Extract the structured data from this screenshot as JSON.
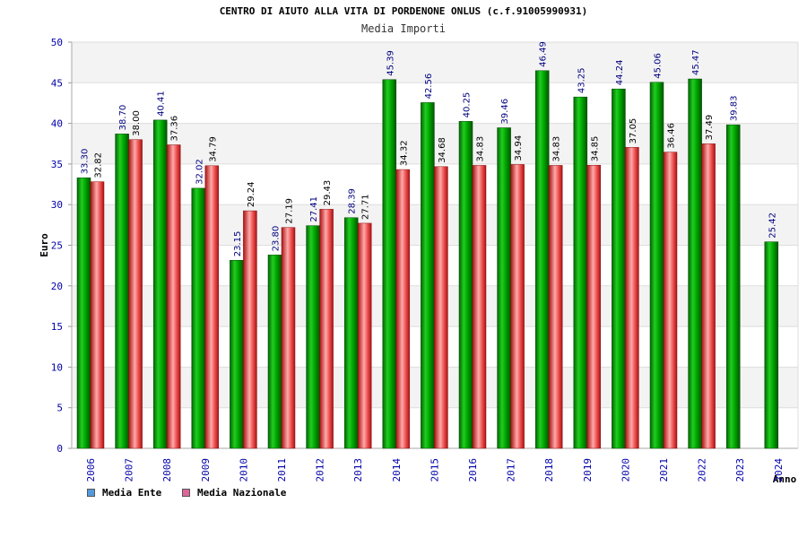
{
  "chart_data": {
    "type": "bar",
    "title": "CENTRO DI AIUTO ALLA VITA DI PORDENONE ONLUS (c.f.91005990931)",
    "subtitle": "Media Importi",
    "ylabel": "Euro",
    "xlabel": "Anno",
    "ylim": [
      0,
      50
    ],
    "yticks": [
      0,
      5,
      10,
      15,
      20,
      25,
      30,
      35,
      40,
      45,
      50
    ],
    "categories": [
      "2006",
      "2007",
      "2008",
      "2009",
      "2010",
      "2011",
      "2012",
      "2013",
      "2014",
      "2015",
      "2016",
      "2017",
      "2018",
      "2019",
      "2020",
      "2021",
      "2022",
      "2023",
      "2024"
    ],
    "series": [
      {
        "name": "Media Ente",
        "color": "#00aa00",
        "values": [
          33.3,
          38.7,
          40.41,
          32.02,
          23.15,
          23.8,
          27.41,
          28.39,
          45.39,
          42.56,
          40.25,
          39.46,
          46.49,
          43.25,
          44.24,
          45.06,
          45.47,
          39.83,
          25.42
        ],
        "labels": [
          "33.30",
          "38.70",
          "40.41",
          "32.02",
          "23.15",
          "23.80",
          "27.41",
          "28.39",
          "45.39",
          "42.56",
          "40.25",
          "39.46",
          "46.49",
          "43.25",
          "44.24",
          "45.06",
          "45.47",
          "39.83",
          "25.42"
        ]
      },
      {
        "name": "Media Nazionale",
        "color": "#dd2222",
        "values": [
          32.82,
          38.0,
          37.36,
          34.79,
          29.24,
          27.19,
          29.43,
          27.71,
          34.32,
          34.68,
          34.83,
          34.94,
          34.83,
          34.85,
          37.05,
          36.46,
          37.49,
          null,
          null
        ],
        "labels": [
          "32.82",
          "38.00",
          "37.36",
          "34.79",
          "29.24",
          "27.19",
          "29.43",
          "27.71",
          "34.32",
          "34.68",
          "34.83",
          "34.94",
          "34.83",
          "34.85",
          "37.05",
          "36.46",
          "37.49",
          null,
          null
        ]
      }
    ],
    "legend": [
      {
        "label": "Media Ente",
        "color": "#5599dd"
      },
      {
        "label": "Media Nazionale",
        "color": "#dd6699"
      }
    ],
    "grid": true
  }
}
